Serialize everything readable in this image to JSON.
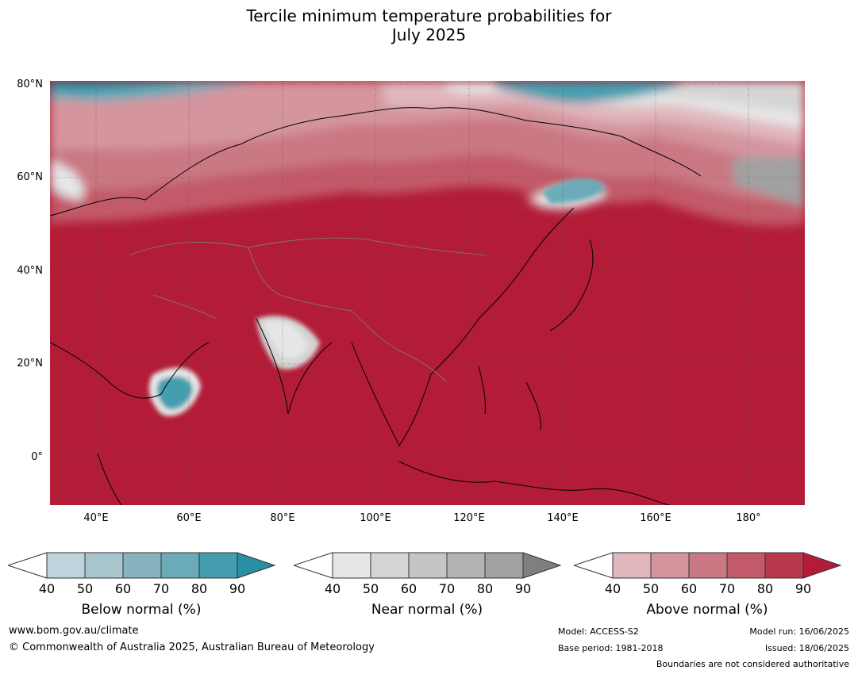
{
  "title_line1": "Tercile minimum temperature probabilities for",
  "title_line2": "July 2025",
  "map": {
    "lat_labels": [
      "80°N",
      "60°N",
      "40°N",
      "20°N",
      "0°"
    ],
    "lon_labels": [
      "40°E",
      "60°E",
      "80°E",
      "100°E",
      "120°E",
      "140°E",
      "160°E",
      "180°"
    ],
    "colors": {
      "below": [
        "#bfd3dc",
        "#a7c5cc",
        "#88b2bf",
        "#6aabb7",
        "#459eb0",
        "#2a8fa4"
      ],
      "near": [
        "#e6e6e6",
        "#d5d5d5",
        "#c5c5c5",
        "#b3b3b3",
        "#a1a1a1",
        "#7f7f7f"
      ],
      "above": [
        "#e0b7bd",
        "#d5959e",
        "#ca7883",
        "#c25a69",
        "#b9384c",
        "#b21c37"
      ]
    }
  },
  "colorbars": [
    {
      "title": "Below normal (%)",
      "ticks": [
        "40",
        "50",
        "60",
        "70",
        "80",
        "90"
      ]
    },
    {
      "title": "Near normal (%)",
      "ticks": [
        "40",
        "50",
        "60",
        "70",
        "80",
        "90"
      ]
    },
    {
      "title": "Above normal (%)",
      "ticks": [
        "40",
        "50",
        "60",
        "70",
        "80",
        "90"
      ]
    }
  ],
  "footer": {
    "url": "www.bom.gov.au/climate",
    "copyright": "© Commonwealth of Australia 2025, Australian Bureau of Meteorology",
    "model": "Model: ACCESS-S2",
    "base_period": "Base period: 1981-2018",
    "model_run": "Model run: 16/06/2025",
    "issued": "Issued: 18/06/2025",
    "disclaimer": "Boundaries are not considered authoritative"
  }
}
